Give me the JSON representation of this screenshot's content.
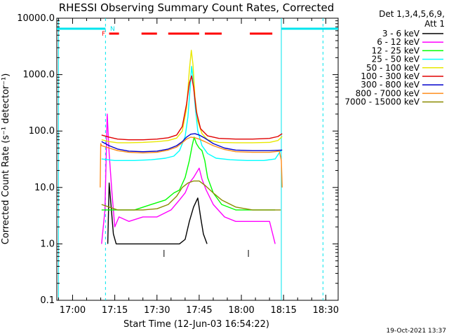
{
  "chart_data": {
    "type": "line",
    "title": "RHESSI Observing Summary Count Rates, Corrected",
    "xlabel": "Start Time (12-Jun-03 16:54:22)",
    "ylabel": "Corrected Count Rate (s⁻¹ detector⁻¹)",
    "timestamp": "19-Oct-2021 13:37",
    "yscale": "log",
    "ylim": [
      0.1,
      10000
    ],
    "xlim_minutes": [
      -5.6,
      94.4
    ],
    "x_ticks": [
      {
        "label": "17:00",
        "min": 0
      },
      {
        "label": "17:15",
        "min": 15
      },
      {
        "label": "17:30",
        "min": 30
      },
      {
        "label": "17:45",
        "min": 45
      },
      {
        "label": "18:00",
        "min": 60
      },
      {
        "label": "18:15",
        "min": 75
      },
      {
        "label": "18:30",
        "min": 90
      }
    ],
    "y_ticks": [
      {
        "label": "10000.0",
        "value": 10000
      },
      {
        "label": "1000.0",
        "value": 1000
      },
      {
        "label": "100.0",
        "value": 100
      },
      {
        "label": "10.0",
        "value": 10
      },
      {
        "label": "1.0",
        "value": 1
      },
      {
        "label": "0.1",
        "value": 0.1
      }
    ],
    "legend": {
      "header_line1": "Det 1,3,4,5,6,9,",
      "header_line2": "Att 1",
      "placement": "right"
    },
    "flags": {
      "night_label": "N",
      "flare_label": "F",
      "night_color": "#00e5ee",
      "flare_color": "#ff0000",
      "night_spans": [
        [
          -5.6,
          11.7
        ],
        [
          74.2,
          94.4
        ]
      ],
      "night_dashes_at": [
        11.7,
        89.0
      ],
      "night_solid_at": [
        -5.0,
        74.2
      ],
      "flare_spans": [
        [
          13.0,
          16.5
        ],
        [
          24.5,
          30.0
        ],
        [
          34.0,
          45.0
        ],
        [
          47.0,
          53.0
        ],
        [
          63.0,
          71.0
        ]
      ],
      "minor_ticks_at": [
        32.5,
        62.5
      ]
    },
    "series": [
      {
        "name": "3 - 6 keV",
        "color": "#000000",
        "points": [
          [
            12.5,
            1.0
          ],
          [
            13.0,
            12.0
          ],
          [
            13.8,
            4.0
          ],
          [
            14.5,
            1.5
          ],
          [
            15.5,
            1.0
          ],
          [
            38.0,
            1.0
          ],
          [
            40.0,
            1.2
          ],
          [
            41.5,
            2.5
          ],
          [
            43.0,
            4.5
          ],
          [
            44.5,
            6.5
          ],
          [
            45.5,
            3.0
          ],
          [
            46.5,
            1.5
          ],
          [
            47.8,
            1.0
          ]
        ]
      },
      {
        "name": "6 - 12 keV",
        "color": "#ff00ff",
        "points": [
          [
            10.3,
            1.0
          ],
          [
            11.5,
            4.0
          ],
          [
            12.3,
            200.0
          ],
          [
            13.0,
            40.0
          ],
          [
            14.0,
            8.0
          ],
          [
            15.0,
            2.0
          ],
          [
            16.5,
            3.0
          ],
          [
            20.0,
            2.5
          ],
          [
            25.0,
            3.0
          ],
          [
            30.0,
            3.0
          ],
          [
            35.0,
            4.0
          ],
          [
            38.0,
            6.0
          ],
          [
            40.0,
            8.0
          ],
          [
            41.5,
            12.0
          ],
          [
            43.0,
            15.0
          ],
          [
            45.0,
            22.0
          ],
          [
            46.0,
            14.0
          ],
          [
            47.5,
            9.0
          ],
          [
            50.0,
            5.0
          ],
          [
            54.0,
            3.0
          ],
          [
            58.0,
            2.5
          ],
          [
            62.0,
            2.5
          ],
          [
            66.0,
            2.5
          ],
          [
            70.0,
            2.5
          ],
          [
            72.0,
            1.0
          ]
        ]
      },
      {
        "name": "12 - 25 keV",
        "color": "#00ff00",
        "points": [
          [
            10.3,
            4.0
          ],
          [
            16.0,
            4.0
          ],
          [
            22.0,
            4.0
          ],
          [
            28.0,
            5.0
          ],
          [
            33.0,
            6.0
          ],
          [
            36.0,
            8.0
          ],
          [
            38.0,
            9.0
          ],
          [
            40.0,
            15.0
          ],
          [
            41.5,
            30.0
          ],
          [
            42.5,
            55.0
          ],
          [
            43.2,
            78.0
          ],
          [
            44.0,
            60.0
          ],
          [
            45.0,
            50.0
          ],
          [
            46.0,
            45.0
          ],
          [
            47.0,
            30.0
          ],
          [
            48.0,
            15.0
          ],
          [
            50.0,
            8.0
          ],
          [
            53.0,
            5.0
          ],
          [
            58.0,
            4.0
          ],
          [
            65.0,
            4.0
          ],
          [
            72.0,
            4.0
          ]
        ]
      },
      {
        "name": "25 - 50 keV",
        "color": "#00ffff",
        "points": [
          [
            10.3,
            32.0
          ],
          [
            15.0,
            30.0
          ],
          [
            22.0,
            30.0
          ],
          [
            28.0,
            31.0
          ],
          [
            33.0,
            33.0
          ],
          [
            36.0,
            36.0
          ],
          [
            38.0,
            45.0
          ],
          [
            40.0,
            80.0
          ],
          [
            41.0,
            180.0
          ],
          [
            41.8,
            600.0
          ],
          [
            42.3,
            1400.0
          ],
          [
            42.8,
            900.0
          ],
          [
            43.5,
            300.0
          ],
          [
            44.5,
            100.0
          ],
          [
            46.0,
            55.0
          ],
          [
            48.0,
            40.0
          ],
          [
            51.0,
            33.0
          ],
          [
            56.0,
            31.0
          ],
          [
            62.0,
            30.0
          ],
          [
            68.0,
            30.0
          ],
          [
            72.0,
            32.0
          ],
          [
            74.0,
            45.0
          ]
        ]
      },
      {
        "name": "50 - 100 keV",
        "color": "#e8e800",
        "points": [
          [
            10.3,
            70.0
          ],
          [
            13.0,
            65.0
          ],
          [
            16.0,
            62.0
          ],
          [
            20.0,
            62.0
          ],
          [
            25.0,
            63.0
          ],
          [
            30.0,
            65.0
          ],
          [
            34.0,
            68.0
          ],
          [
            37.0,
            75.0
          ],
          [
            39.0,
            100.0
          ],
          [
            40.5,
            250.0
          ],
          [
            41.5,
            1200.0
          ],
          [
            42.2,
            2700.0
          ],
          [
            42.8,
            1500.0
          ],
          [
            43.5,
            400.0
          ],
          [
            44.5,
            150.0
          ],
          [
            46.0,
            90.0
          ],
          [
            48.0,
            70.0
          ],
          [
            52.0,
            63.0
          ],
          [
            58.0,
            62.0
          ],
          [
            64.0,
            62.0
          ],
          [
            70.0,
            63.0
          ],
          [
            73.0,
            68.0
          ],
          [
            74.5,
            80.0
          ]
        ]
      },
      {
        "name": "100 - 300 keV",
        "color": "#e00000",
        "points": [
          [
            10.3,
            85.0
          ],
          [
            13.0,
            78.0
          ],
          [
            16.0,
            72.0
          ],
          [
            20.0,
            70.0
          ],
          [
            25.0,
            70.0
          ],
          [
            30.0,
            72.0
          ],
          [
            34.0,
            76.0
          ],
          [
            37.0,
            85.0
          ],
          [
            39.0,
            120.0
          ],
          [
            40.5,
            300.0
          ],
          [
            41.5,
            700.0
          ],
          [
            42.3,
            950.0
          ],
          [
            43.0,
            600.0
          ],
          [
            44.0,
            220.0
          ],
          [
            45.5,
            110.0
          ],
          [
            48.0,
            82.0
          ],
          [
            52.0,
            74.0
          ],
          [
            58.0,
            72.0
          ],
          [
            64.0,
            72.0
          ],
          [
            70.0,
            74.0
          ],
          [
            73.0,
            80.0
          ],
          [
            74.5,
            90.0
          ]
        ]
      },
      {
        "name": "300 - 800 keV",
        "color": "#0000cc",
        "points": [
          [
            10.3,
            65.0
          ],
          [
            13.0,
            55.0
          ],
          [
            16.0,
            48.0
          ],
          [
            20.0,
            44.0
          ],
          [
            25.0,
            43.0
          ],
          [
            30.0,
            44.0
          ],
          [
            34.0,
            48.0
          ],
          [
            37.0,
            55.0
          ],
          [
            39.0,
            65.0
          ],
          [
            40.5,
            78.0
          ],
          [
            42.0,
            88.0
          ],
          [
            43.5,
            90.0
          ],
          [
            45.0,
            85.0
          ],
          [
            47.0,
            75.0
          ],
          [
            50.0,
            60.0
          ],
          [
            54.0,
            50.0
          ],
          [
            58.0,
            46.0
          ],
          [
            64.0,
            45.0
          ],
          [
            70.0,
            45.0
          ],
          [
            74.5,
            46.0
          ]
        ]
      },
      {
        "name": "800 - 7000 keV",
        "color": "#ff8c1a",
        "points": [
          [
            9.8,
            10.0
          ],
          [
            10.0,
            60.0
          ],
          [
            10.3,
            55.0
          ],
          [
            13.0,
            50.0
          ],
          [
            16.0,
            45.0
          ],
          [
            20.0,
            42.0
          ],
          [
            25.0,
            41.0
          ],
          [
            30.0,
            42.0
          ],
          [
            34.0,
            46.0
          ],
          [
            37.0,
            52.0
          ],
          [
            39.0,
            62.0
          ],
          [
            40.5,
            72.0
          ],
          [
            42.0,
            78.0
          ],
          [
            43.5,
            76.0
          ],
          [
            45.0,
            72.0
          ],
          [
            47.0,
            65.0
          ],
          [
            50.0,
            55.0
          ],
          [
            54.0,
            47.0
          ],
          [
            58.0,
            43.0
          ],
          [
            64.0,
            42.0
          ],
          [
            70.0,
            42.0
          ],
          [
            73.5,
            44.0
          ],
          [
            74.2,
            30.0
          ],
          [
            74.5,
            10.0
          ]
        ]
      },
      {
        "name": "7000 - 15000 keV",
        "color": "#8b8b00",
        "points": [
          [
            10.3,
            5.0
          ],
          [
            13.0,
            4.5
          ],
          [
            16.0,
            4.0
          ],
          [
            20.0,
            4.0
          ],
          [
            25.0,
            4.0
          ],
          [
            30.0,
            4.2
          ],
          [
            34.0,
            5.0
          ],
          [
            37.0,
            7.0
          ],
          [
            39.0,
            10.0
          ],
          [
            41.0,
            12.0
          ],
          [
            43.0,
            13.0
          ],
          [
            45.0,
            13.0
          ],
          [
            47.0,
            11.0
          ],
          [
            50.0,
            8.0
          ],
          [
            53.0,
            6.0
          ],
          [
            58.0,
            4.5
          ],
          [
            64.0,
            4.0
          ],
          [
            70.0,
            4.0
          ],
          [
            74.0,
            4.0
          ]
        ]
      }
    ]
  }
}
